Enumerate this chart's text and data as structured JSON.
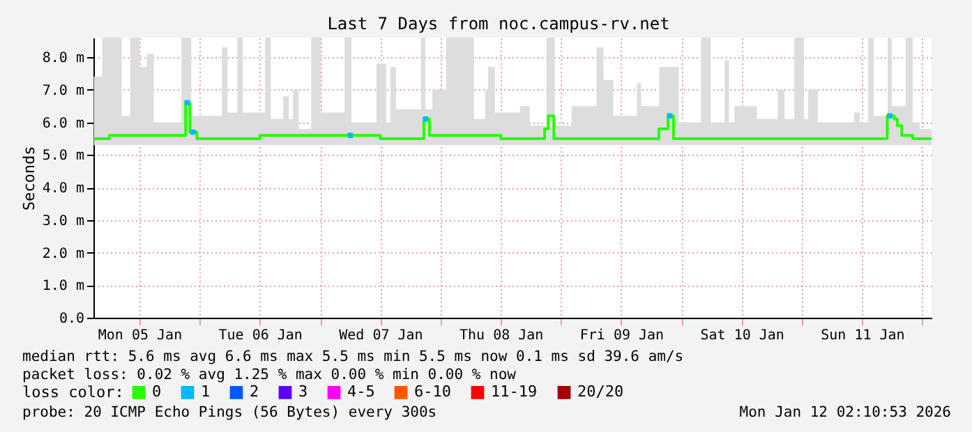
{
  "chart_data": {
    "type": "step",
    "title": "Last 7 Days from noc.campus-rv.net",
    "ylabel": "Seconds",
    "legend_title": "loss color:",
    "legend": "bottom",
    "grid": true,
    "xlim": [
      "2026-01-05T02:50",
      "2026-01-12T01:50"
    ],
    "xticks": [
      {
        "value": "2026-01-05T12:00",
        "label": "Mon 05 Jan"
      },
      {
        "value": "2026-01-06T00:00",
        "label": null
      },
      {
        "value": "2026-01-06T12:00",
        "label": "Tue 06 Jan"
      },
      {
        "value": "2026-01-07T00:00",
        "label": null
      },
      {
        "value": "2026-01-07T12:00",
        "label": "Wed 07 Jan"
      },
      {
        "value": "2026-01-08T00:00",
        "label": null
      },
      {
        "value": "2026-01-08T12:00",
        "label": "Thu 08 Jan"
      },
      {
        "value": "2026-01-09T00:00",
        "label": null
      },
      {
        "value": "2026-01-09T12:00",
        "label": "Fri 09 Jan"
      },
      {
        "value": "2026-01-10T00:00",
        "label": null
      },
      {
        "value": "2026-01-10T12:00",
        "label": "Sat 10 Jan"
      },
      {
        "value": "2026-01-11T00:00",
        "label": null
      },
      {
        "value": "2026-01-11T12:00",
        "label": "Sun 11 Jan"
      },
      {
        "value": "2026-01-12T00:00",
        "label": null
      }
    ],
    "ylim": [
      0,
      8.6
    ],
    "yticks": [
      {
        "value": 0,
        "label": "0.0"
      },
      {
        "value": 1,
        "label": "1.0 m"
      },
      {
        "value": 2,
        "label": "2.0 m"
      },
      {
        "value": 3,
        "label": "3.0 m"
      },
      {
        "value": 4,
        "label": "4.0 m"
      },
      {
        "value": 5,
        "label": "5.0 m"
      },
      {
        "value": 6,
        "label": "6.0 m"
      },
      {
        "value": 7,
        "label": "7.0 m"
      },
      {
        "value": 8,
        "label": "8.0 m"
      }
    ],
    "series": [
      {
        "name": "0",
        "color": "#26ff00",
        "x": [
          "2026-01-05T02:55",
          "2026-01-05T04:35",
          "2026-01-05T06:00",
          "2026-01-05T08:28",
          "2026-01-05T10:08",
          "2026-01-05T12:04",
          "2026-01-05T13:28",
          "2026-01-05T14:51",
          "2026-01-05T20:24",
          "2026-01-05T21:12",
          "2026-01-05T22:03",
          "2026-01-05T22:20",
          "2026-01-05T23:27",
          "2026-01-06T02:47",
          "2026-01-06T04:26",
          "2026-01-06T05:33",
          "2026-01-06T07:30",
          "2026-01-06T08:37",
          "2026-01-06T12:00",
          "2026-01-06T13:02",
          "2026-01-06T14:10",
          "2026-01-06T16:39",
          "2026-01-06T17:46",
          "2026-01-06T18:36",
          "2026-01-06T19:43",
          "2026-01-06T22:13",
          "2026-01-07T00:09",
          "2026-01-07T04:52",
          "2026-01-07T06:15",
          "2026-01-07T11:15",
          "2026-01-07T12:00",
          "2026-01-07T13:11",
          "2026-01-07T14:01",
          "2026-01-07T15:08",
          "2026-01-07T20:08",
          "2026-01-07T20:40",
          "2026-01-07T20:58",
          "2026-01-07T21:48",
          "2026-01-07T22:21",
          "2026-01-08T01:07",
          "2026-01-08T06:40",
          "2026-01-08T08:53",
          "2026-01-08T09:27",
          "2026-01-08T10:50",
          "2026-01-08T12:00",
          "2026-01-08T15:50",
          "2026-01-08T17:46",
          "2026-01-08T20:44",
          "2026-01-08T21:06",
          "2026-01-08T21:28",
          "2026-01-08T22:34",
          "2026-01-08T22:46",
          "2026-01-09T02:06",
          "2026-01-09T07:05",
          "2026-01-09T08:29",
          "2026-01-09T10:25",
          "2026-01-09T15:08",
          "2026-01-09T15:58",
          "2026-01-09T19:30",
          "2026-01-09T19:35",
          "2026-01-09T21:20",
          "2026-01-09T22:25",
          "2026-01-09T23:28",
          "2026-01-10T03:54",
          "2026-01-10T05:50",
          "2026-01-10T08:37",
          "2026-01-10T09:27",
          "2026-01-10T10:34",
          "2026-01-10T15:00",
          "2026-01-10T19:10",
          "2026-01-10T20:33",
          "2026-01-10T22:29",
          "2026-01-11T00:26",
          "2026-01-11T01:16",
          "2026-01-11T03:13",
          "2026-01-11T10:25",
          "2026-01-11T11:32",
          "2026-01-11T13:12",
          "2026-01-11T14:19",
          "2026-01-11T17:00",
          "2026-01-11T17:05",
          "2026-01-11T17:55",
          "2026-01-11T18:24",
          "2026-01-11T19:00",
          "2026-01-11T19:54",
          "2026-01-11T20:41",
          "2026-01-11T22:05",
          "2026-01-11T22:06",
          "2026-01-11T23:28",
          "2026-01-12T01:50"
        ],
        "values": [
          5.5,
          5.5,
          5.6,
          5.6,
          5.6,
          5.6,
          5.6,
          5.6,
          5.6,
          6.6,
          5.7,
          5.7,
          5.5,
          5.5,
          5.5,
          5.5,
          5.5,
          5.5,
          5.6,
          5.6,
          5.6,
          5.6,
          5.6,
          5.6,
          5.6,
          5.6,
          5.6,
          5.6,
          5.6,
          5.6,
          5.5,
          5.5,
          5.5,
          5.5,
          5.5,
          6.1,
          6.1,
          5.6,
          5.6,
          5.6,
          5.6,
          5.6,
          5.6,
          5.6,
          5.5,
          5.5,
          5.5,
          5.8,
          5.8,
          6.2,
          5.5,
          5.5,
          5.5,
          5.5,
          5.5,
          5.5,
          5.5,
          5.5,
          5.8,
          5.8,
          6.2,
          5.5,
          5.5,
          5.5,
          5.5,
          5.5,
          5.5,
          5.5,
          5.5,
          5.5,
          5.5,
          5.5,
          5.5,
          5.5,
          5.5,
          5.5,
          5.5,
          5.5,
          5.5,
          6.2,
          6.2,
          6.2,
          6.1,
          5.9,
          5.6,
          5.6,
          5.6,
          5.5,
          5.5,
          5.5
        ],
        "upper": [
          7.4,
          8.6,
          8.6,
          6.2,
          8.6,
          7.7,
          8.1,
          6.0,
          8.6,
          8.6,
          8.6,
          6.2,
          6.2,
          6.2,
          8.3,
          6.3,
          8.6,
          6.3,
          6.3,
          8.6,
          6.1,
          6.8,
          6.1,
          7.0,
          5.8,
          8.6,
          6.3,
          8.6,
          6.0,
          7.8,
          7.8,
          6.0,
          7.7,
          6.4,
          8.6,
          8.6,
          6.4,
          6.4,
          7.0,
          8.6,
          6.1,
          7.0,
          7.7,
          6.3,
          6.3,
          6.5,
          5.9,
          5.9,
          8.6,
          8.6,
          8.6,
          5.9,
          6.5,
          8.3,
          7.3,
          6.2,
          7.2,
          6.5,
          6.5,
          7.7,
          7.7,
          7.7,
          6.0,
          8.6,
          6.0,
          7.9,
          6.0,
          6.5,
          6.1,
          7.0,
          6.1,
          8.6,
          6.1,
          7.0,
          6.0,
          6.3,
          6.0,
          8.6,
          6.2,
          6.2,
          8.6,
          6.5,
          6.5,
          6.5,
          6.5,
          8.6,
          6.0,
          6.0,
          5.8,
          5.8
        ],
        "lower": [
          5.3,
          5.3,
          5.3,
          5.3,
          5.3,
          5.3,
          5.3,
          5.3,
          5.3,
          5.3,
          5.3,
          5.3,
          5.3,
          5.3,
          5.3,
          5.3,
          5.3,
          5.3,
          5.3,
          5.3,
          5.3,
          5.3,
          5.3,
          5.3,
          5.3,
          5.3,
          5.3,
          5.3,
          5.3,
          5.3,
          5.3,
          5.3,
          5.3,
          5.3,
          5.3,
          5.3,
          5.3,
          5.3,
          5.3,
          5.3,
          5.3,
          5.3,
          5.3,
          5.3,
          5.3,
          5.3,
          5.3,
          5.3,
          5.3,
          5.3,
          5.3,
          5.3,
          5.3,
          5.3,
          5.3,
          5.3,
          5.3,
          5.3,
          5.3,
          5.3,
          5.3,
          5.3,
          5.3,
          5.3,
          5.3,
          5.3,
          5.3,
          5.3,
          5.3,
          5.3,
          5.3,
          5.3,
          5.3,
          5.3,
          5.3,
          5.3,
          5.3,
          5.3,
          5.3,
          5.3,
          5.3,
          5.3,
          5.3,
          5.3,
          5.3,
          5.3,
          5.3,
          5.3,
          5.3,
          5.3
        ]
      },
      {
        "name": "1",
        "type": "scatter",
        "marker": "square",
        "color": "#00b8ff",
        "x": [
          "2026-01-05T21:30",
          "2026-01-05T22:40",
          "2026-01-07T06:00",
          "2026-01-07T21:00",
          "2026-01-09T21:40",
          "2026-01-11T17:30"
        ],
        "values": [
          6.6,
          5.7,
          5.6,
          6.1,
          6.2,
          6.2
        ]
      },
      {
        "name": "2",
        "color": "#0059ff"
      },
      {
        "name": "3",
        "color": "#5e00ff"
      },
      {
        "name": "4-5",
        "color": "#ff00ff"
      },
      {
        "name": "6-10",
        "color": "#ff5500"
      },
      {
        "name": "11-19",
        "color": "#ff0000"
      },
      {
        "name": "20/20",
        "color": "#a10000"
      }
    ],
    "annotations": [
      "median rtt:  5.6 ms avg  6.6 ms max  5.5 ms min  5.5 ms now  0.1 ms sd  39.6   am/s",
      "packet loss: 0.02 % avg  1.25 % max  0.00 % min  0.00 % now",
      "probe:       20 ICMP Echo Pings (56 Bytes) every 300s",
      "Mon Jan 12 02:10:53 2026"
    ]
  }
}
